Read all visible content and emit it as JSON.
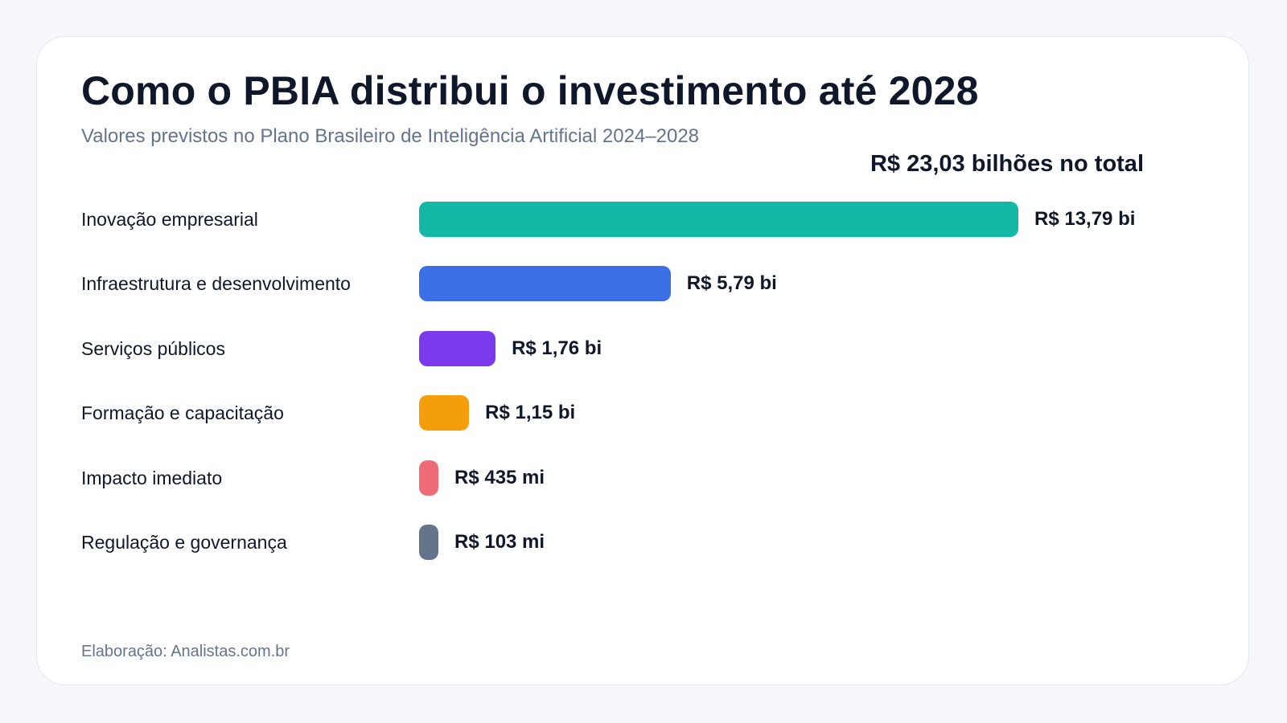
{
  "chart_data": {
    "type": "bar",
    "orientation": "horizontal",
    "title": "Como o PBIA distribui o investimento até 2028",
    "subtitle": "Valores previstos no Plano Brasileiro de Inteligência Artificial 2024–2028",
    "total_label": "R$ 23,03 bilhões no total",
    "unit": "R$ bilhões",
    "categories": [
      "Inovação empresarial",
      "Infraestrutura e desenvolvimento",
      "Serviços públicos",
      "Formação e capacitação",
      "Impacto imediato",
      "Regulação e governança"
    ],
    "values": [
      13.79,
      5.79,
      1.76,
      1.15,
      0.435,
      0.103
    ],
    "value_labels": [
      "R$ 13,79 bi",
      "R$ 5,79 bi",
      "R$ 1,76 bi",
      "R$ 1,15 bi",
      "R$ 435 mi",
      "R$ 103 mi"
    ],
    "colors": [
      "#14b8a6",
      "#3b6fe6",
      "#7c3aed",
      "#f59e0b",
      "#f06b78",
      "#64748b"
    ],
    "grid": false,
    "legend": "none"
  },
  "footer": {
    "source": "Elaboração: Analistas.com.br"
  }
}
